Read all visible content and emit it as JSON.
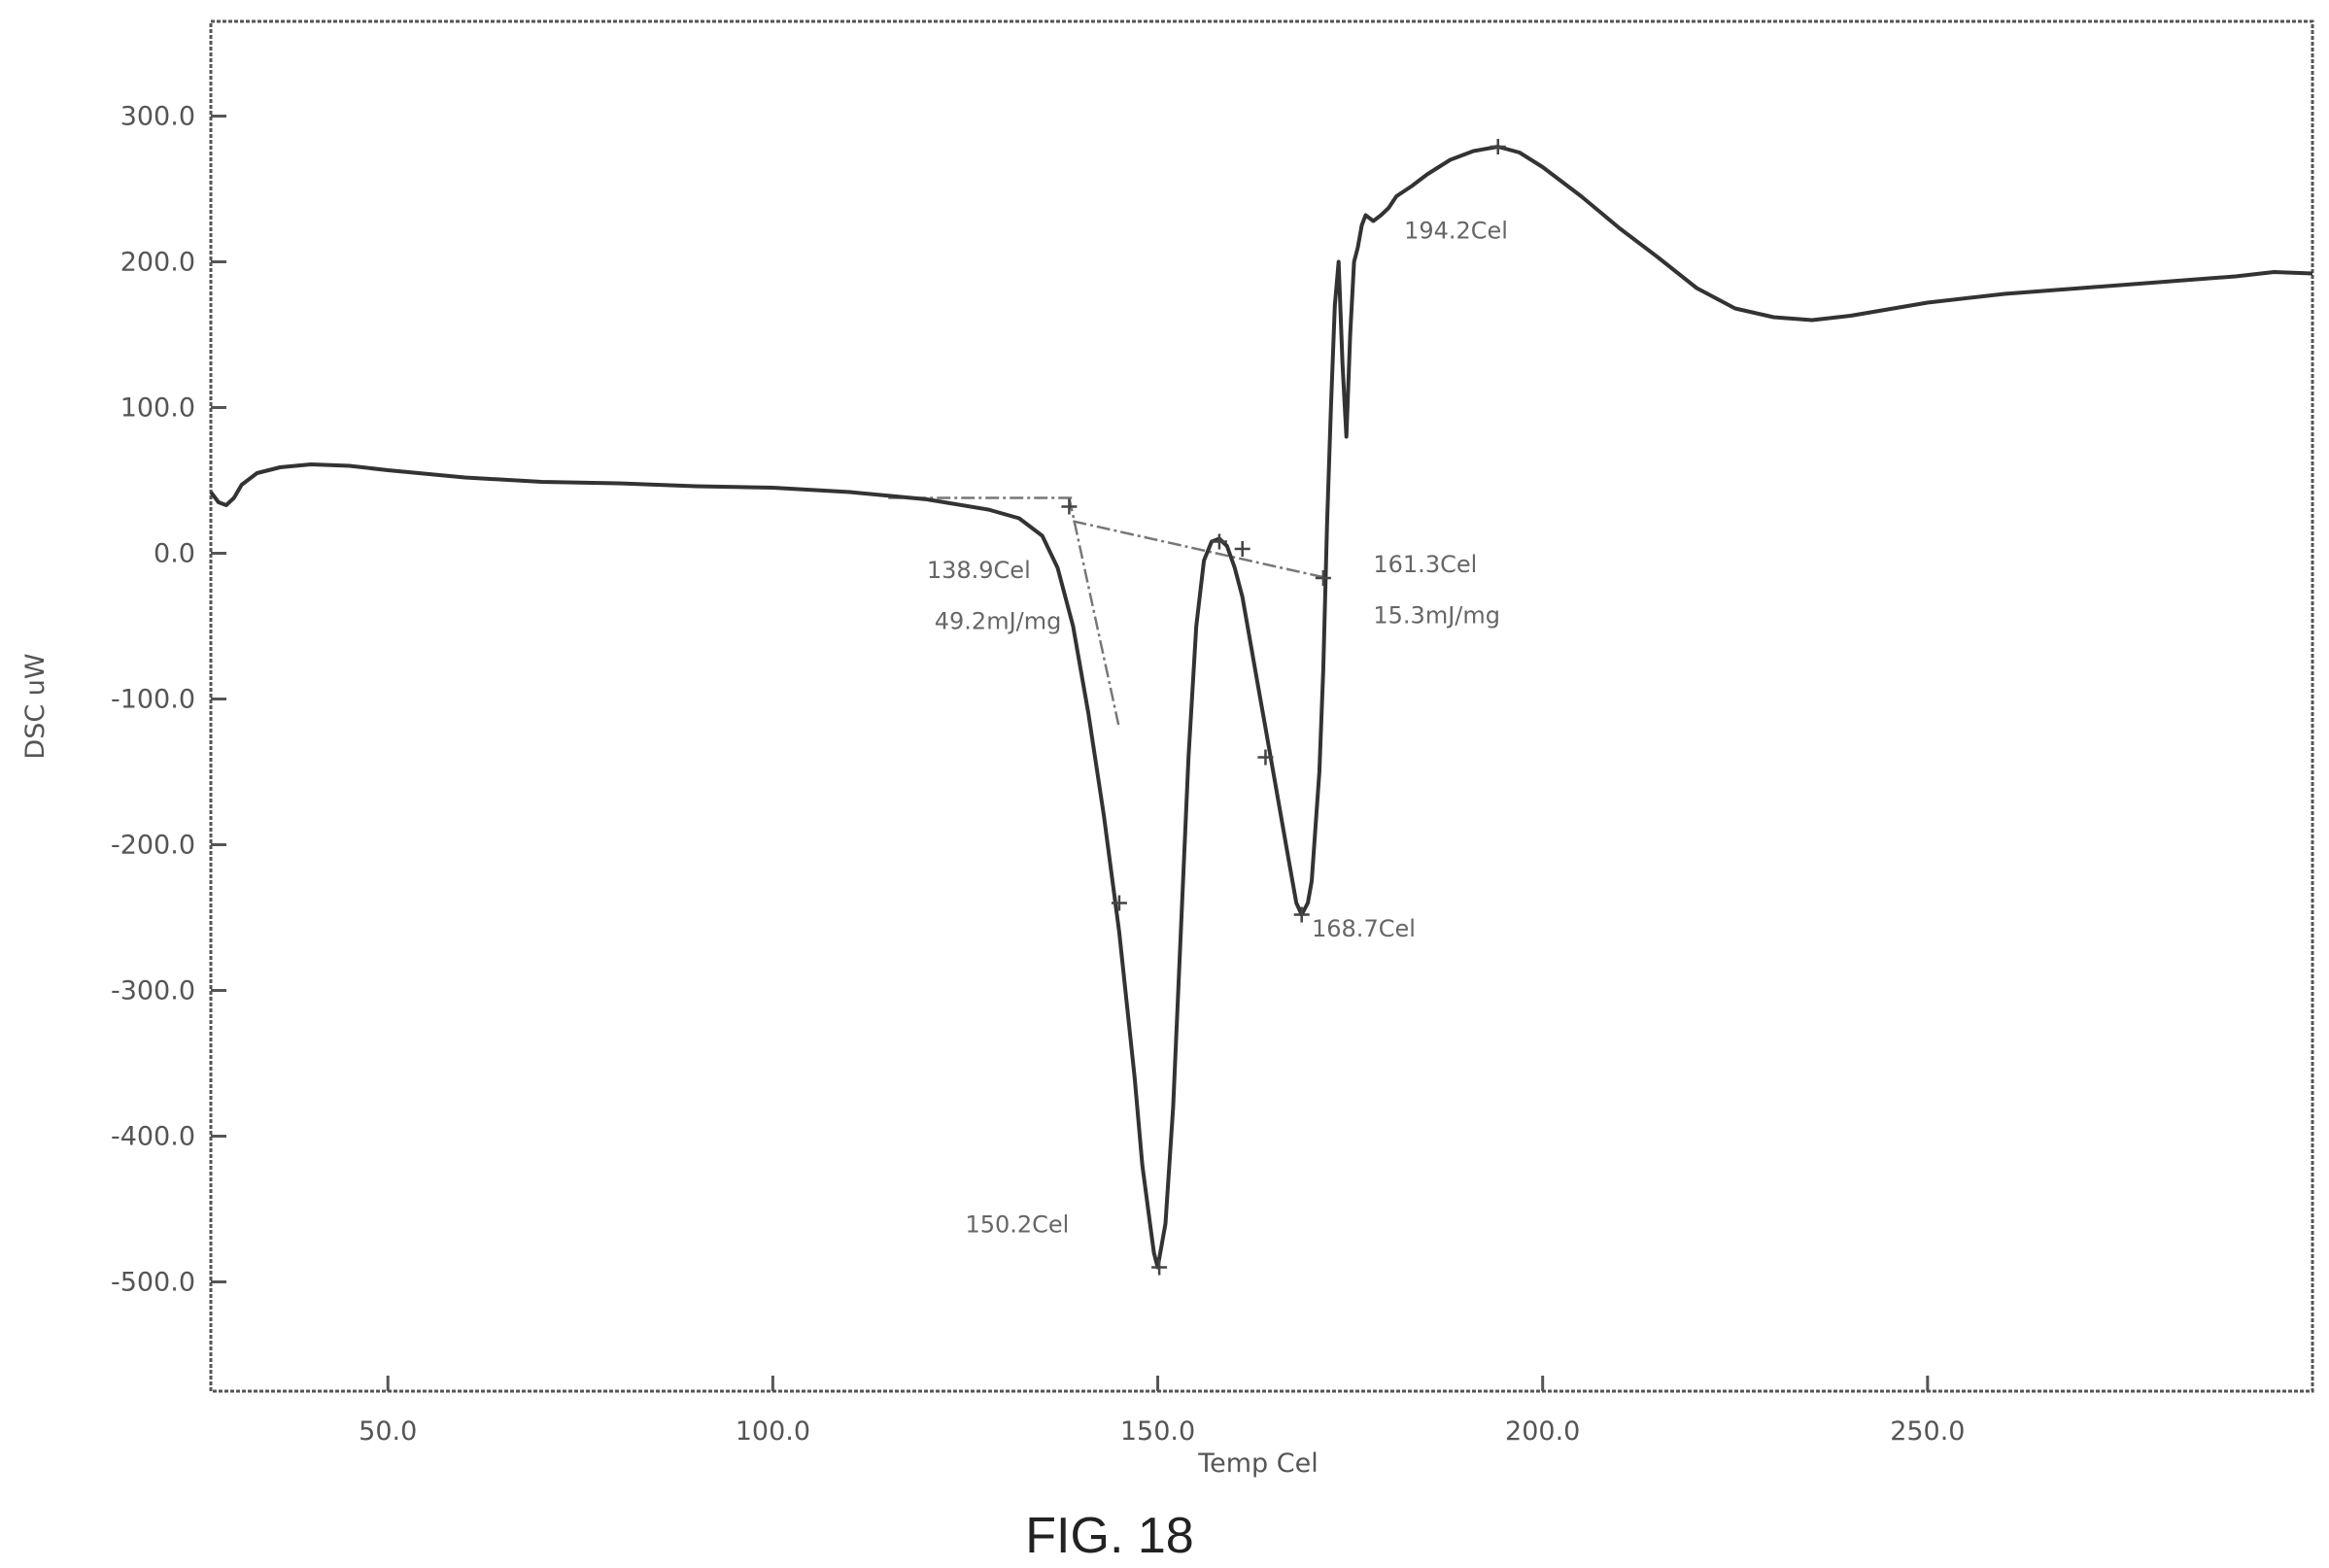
{
  "chart_data": {
    "type": "line",
    "xlabel": "Temp Cel",
    "ylabel": "DSC uW",
    "xlim": [
      27,
      300
    ],
    "ylim": [
      -575,
      365
    ],
    "x_ticks": [
      50,
      100,
      150,
      200,
      250
    ],
    "x_tick_labels": [
      "50.0",
      "100.0",
      "150.0",
      "200.0",
      "250.0"
    ],
    "y_ticks": [
      300,
      200,
      100,
      0,
      -100,
      -200,
      -300,
      -400,
      -500
    ],
    "y_tick_labels": [
      "300.0",
      "200.0",
      "100.0",
      "0.0",
      "-100.0",
      "-200.0",
      "-300.0",
      "-400.0",
      "-500.0"
    ],
    "grid": false,
    "series": [
      {
        "x": [
          27,
          28,
          29,
          30,
          31,
          33,
          36,
          40,
          45,
          50,
          60,
          70,
          80,
          90,
          100,
          110,
          120,
          128,
          132,
          135,
          137,
          139,
          141,
          143,
          145,
          147,
          148,
          149,
          149.5,
          150,
          151,
          152,
          153,
          154,
          155,
          156,
          157,
          158,
          159,
          160,
          161,
          162,
          163,
          164,
          165,
          166,
          167,
          168,
          168.7,
          169.5,
          170,
          171,
          171.5,
          172,
          172.5,
          173,
          173.5,
          174,
          174.5,
          175,
          175.5,
          176,
          176.5,
          177,
          178,
          179,
          180,
          181,
          183,
          185,
          188,
          191,
          194.2,
          197,
          200,
          205,
          210,
          215,
          220,
          225,
          230,
          235,
          240,
          250,
          260,
          270,
          280,
          290,
          295,
          300
        ],
        "y": [
          42,
          35,
          33,
          38,
          47,
          55,
          59,
          61,
          60,
          57,
          52,
          49,
          48,
          46,
          45,
          42,
          37,
          30,
          24,
          12,
          -10,
          -50,
          -110,
          -180,
          -260,
          -360,
          -420,
          -460,
          -480,
          -490,
          -460,
          -380,
          -260,
          -140,
          -50,
          -5,
          8,
          10,
          5,
          -10,
          -30,
          -60,
          -90,
          -120,
          -150,
          -180,
          -210,
          -240,
          -248,
          -240,
          -225,
          -150,
          -80,
          20,
          100,
          170,
          200,
          130,
          80,
          150,
          200,
          210,
          225,
          232,
          228,
          232,
          237,
          245,
          252,
          260,
          270,
          276,
          279,
          275,
          265,
          245,
          223,
          203,
          182,
          168,
          162,
          160,
          163,
          172,
          178,
          182,
          186,
          190,
          193,
          192
        ]
      }
    ],
    "baselines": [
      {
        "x": [
          115,
          139
        ],
        "y": [
          38,
          38
        ]
      },
      {
        "x": [
          138.5,
          145
        ],
        "y": [
          38,
          -120
        ]
      },
      {
        "x": [
          139,
          172
        ],
        "y": [
          22,
          -17
        ]
      }
    ],
    "markers": [
      {
        "x": 138.5,
        "y": 32
      },
      {
        "x": 145,
        "y": -240
      },
      {
        "x": 158,
        "y": 8
      },
      {
        "x": 161,
        "y": 3
      },
      {
        "x": 164,
        "y": -140
      },
      {
        "x": 168.7,
        "y": -248
      },
      {
        "x": 171.5,
        "y": -17
      },
      {
        "x": 150.2,
        "y": -490
      },
      {
        "x": 194.2,
        "y": 279
      }
    ],
    "annotations": [
      {
        "text": "138.9Cel",
        "x": 120,
        "y": -17
      },
      {
        "text": "49.2mJ/mg",
        "x": 121,
        "y": -52
      },
      {
        "text": "161.3Cel",
        "x": 178,
        "y": -13
      },
      {
        "text": "15.3mJ/mg",
        "x": 178,
        "y": -48
      },
      {
        "text": "168.7Cel",
        "x": 170,
        "y": -263
      },
      {
        "text": "150.2Cel",
        "x": 125,
        "y": -466
      },
      {
        "text": "194.2Cel",
        "x": 182,
        "y": 216
      }
    ]
  },
  "caption": "FIG. 18"
}
